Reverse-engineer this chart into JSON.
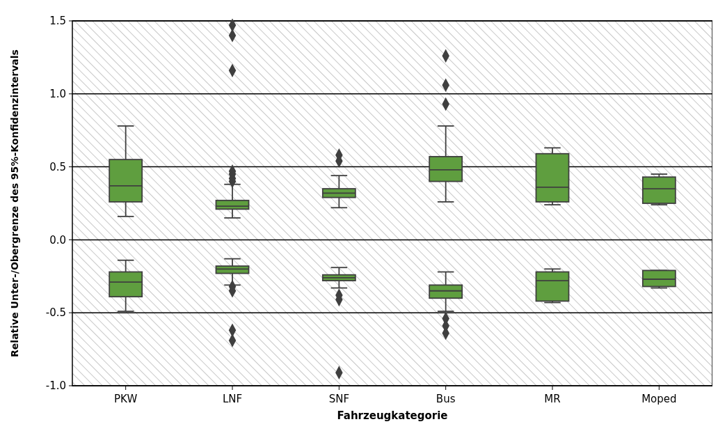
{
  "chart_data": {
    "type": "box",
    "xlabel": "Fahrzeugkategorie",
    "ylabel": "Relative Unter-/Obergrenze des 95%-Konfidenzintervals",
    "categories": [
      "PKW",
      "LNF",
      "SNF",
      "Bus",
      "MR",
      "Moped"
    ],
    "ylim": [
      -1.0,
      1.5
    ],
    "yticks": [
      {
        "value": -1,
        "label": "-1.0"
      },
      {
        "value": -0.5,
        "label": "-0.5"
      },
      {
        "value": 0,
        "label": "0.0"
      },
      {
        "value": 0.5,
        "label": "0.5"
      },
      {
        "value": 1,
        "label": "1.0"
      },
      {
        "value": 1.5,
        "label": "1.5"
      }
    ],
    "grid": "y",
    "marker": "diamond",
    "series": [
      {
        "color": "#5f9e3f",
        "boxes": [
          {
            "low": 0.16,
            "q1": 0.26,
            "median": 0.37,
            "q3": 0.55,
            "high": 0.78
          },
          {
            "low": 0.15,
            "q1": 0.21,
            "median": 0.23,
            "q3": 0.27,
            "high": 0.38,
            "outliers": [
              0.4,
              0.42,
              0.45,
              0.47,
              1.16,
              1.4,
              1.47
            ]
          },
          {
            "low": 0.22,
            "q1": 0.29,
            "median": 0.32,
            "q3": 0.35,
            "high": 0.44,
            "outliers": [
              0.54,
              0.58
            ]
          },
          {
            "low": 0.26,
            "q1": 0.4,
            "median": 0.48,
            "q3": 0.57,
            "high": 0.78,
            "outliers": [
              0.93,
              1.06,
              1.26
            ]
          },
          {
            "low": 0.24,
            "q1": 0.26,
            "median": 0.36,
            "q3": 0.59,
            "high": 0.63
          },
          {
            "low": 0.24,
            "q1": 0.25,
            "median": 0.35,
            "q3": 0.43,
            "high": 0.45
          }
        ]
      },
      {
        "color": "#5f9e3f",
        "boxes": [
          {
            "low": -0.49,
            "q1": -0.39,
            "median": -0.29,
            "q3": -0.22,
            "high": -0.14
          },
          {
            "low": -0.31,
            "q1": -0.23,
            "median": -0.2,
            "q3": -0.18,
            "high": -0.13,
            "outliers": [
              -0.32,
              -0.35,
              -0.62,
              -0.69
            ]
          },
          {
            "low": -0.33,
            "q1": -0.28,
            "median": -0.26,
            "q3": -0.24,
            "high": -0.19,
            "outliers": [
              -0.38,
              -0.41,
              -0.91
            ]
          },
          {
            "low": -0.49,
            "q1": -0.4,
            "median": -0.35,
            "q3": -0.31,
            "high": -0.22,
            "outliers": [
              -0.54,
              -0.59,
              -0.64
            ]
          },
          {
            "low": -0.43,
            "q1": -0.42,
            "median": -0.28,
            "q3": -0.22,
            "high": -0.2
          },
          {
            "low": -0.33,
            "q1": -0.32,
            "median": -0.27,
            "q3": -0.21,
            "high": -0.21
          }
        ]
      }
    ]
  }
}
